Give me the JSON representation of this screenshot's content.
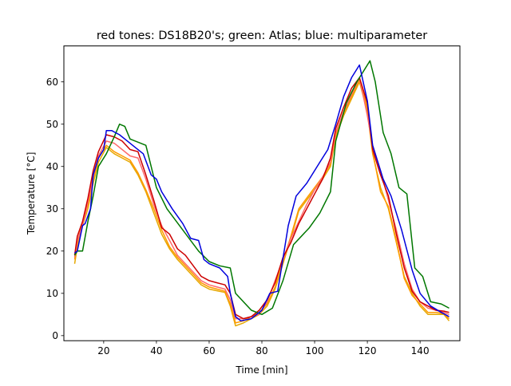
{
  "chart_data": {
    "type": "line",
    "title": "red tones: DS18B20's; green: Atlas; blue: multiparameter",
    "xlabel": "Time [min]",
    "ylabel": "Temperature [°C]",
    "xlim": [
      4.9,
      155.1
    ],
    "ylim": [
      -1.2,
      68.5
    ],
    "xticks": [
      20,
      40,
      60,
      80,
      100,
      120,
      140
    ],
    "yticks": [
      0,
      10,
      20,
      30,
      40,
      50,
      60
    ],
    "grid": false,
    "legend": "none",
    "series": [
      {
        "color": "#e6a800",
        "x": [
          9,
          10,
          12,
          14,
          16,
          18,
          21,
          24,
          27,
          30,
          33,
          36,
          39,
          42,
          45,
          48,
          51,
          54,
          57,
          60,
          63,
          66,
          68,
          70,
          73,
          76,
          79,
          82,
          85,
          88,
          91,
          94,
          97,
          100,
          103,
          106,
          108,
          111,
          114,
          117,
          120,
          122,
          125,
          128,
          131,
          134,
          137,
          140,
          143,
          146,
          149,
          151
        ],
        "y": [
          17,
          21,
          26,
          30,
          36,
          41,
          44.5,
          43,
          42,
          41,
          38,
          34,
          29,
          24,
          20.5,
          18,
          16,
          14,
          12,
          11,
          10.6,
          10.2,
          7,
          2.3,
          3,
          4,
          5,
          7,
          11,
          17,
          23,
          29.5,
          32,
          34.5,
          37,
          40,
          47,
          52,
          56,
          60,
          53,
          43,
          35,
          30,
          22,
          14,
          10,
          7,
          5,
          5,
          5,
          3.5
        ]
      },
      {
        "color": "#ff9a00",
        "x": [
          9,
          10,
          12,
          14,
          16,
          18,
          21,
          24,
          27,
          30,
          33,
          36,
          39,
          42,
          45,
          48,
          51,
          54,
          57,
          60,
          63,
          66,
          68,
          70,
          73,
          76,
          79,
          82,
          85,
          88,
          91,
          94,
          97,
          100,
          103,
          106,
          108,
          111,
          114,
          117,
          120,
          122,
          125,
          128,
          131,
          134,
          137,
          140,
          143,
          146,
          149,
          151
        ],
        "y": [
          18,
          22,
          27,
          31,
          37,
          42,
          45,
          43.5,
          42.5,
          41.5,
          38.5,
          34.5,
          30,
          25,
          21,
          18.5,
          16.5,
          14.5,
          12.5,
          11.5,
          11,
          10.5,
          7.5,
          3,
          3.5,
          4.5,
          5.5,
          7.5,
          11.5,
          17.5,
          23.5,
          30,
          32.5,
          35,
          37.5,
          40.5,
          47.5,
          52.5,
          56.5,
          60.5,
          54,
          43.5,
          34,
          30.5,
          22.5,
          13.5,
          9.5,
          7.5,
          5.5,
          5.5,
          5.2,
          4
        ]
      },
      {
        "color": "#ff6a6a",
        "x": [
          9,
          10,
          12,
          14,
          16,
          18,
          21,
          24,
          27,
          30,
          33,
          36,
          39,
          42,
          45,
          48,
          51,
          54,
          57,
          60,
          63,
          66,
          68,
          70,
          73,
          76,
          79,
          82,
          85,
          88,
          91,
          94,
          97,
          100,
          103,
          106,
          108,
          111,
          114,
          117,
          120,
          122,
          125,
          128,
          131,
          134,
          137,
          140,
          143,
          146,
          149,
          151
        ],
        "y": [
          18.5,
          22.5,
          26,
          31.5,
          37.5,
          42.5,
          46,
          45.5,
          44,
          42.5,
          42,
          37,
          31,
          26,
          22.5,
          19,
          17,
          15,
          13,
          12,
          11.5,
          11,
          8.5,
          4,
          4,
          4.5,
          5,
          8,
          13,
          18,
          23,
          27,
          31,
          34.5,
          37.5,
          41,
          48,
          53,
          57,
          61,
          52,
          45,
          39,
          32,
          25,
          17,
          11,
          8,
          6.5,
          6,
          5.5,
          5
        ]
      },
      {
        "color": "#cc0000",
        "x": [
          9,
          10,
          12,
          14,
          16,
          18,
          21,
          24,
          27,
          30,
          33,
          36,
          39,
          42,
          45,
          48,
          51,
          54,
          57,
          60,
          63,
          66,
          68,
          70,
          73,
          76,
          79,
          82,
          85,
          88,
          91,
          94,
          97,
          100,
          103,
          106,
          108,
          111,
          114,
          117,
          120,
          122,
          125,
          128,
          131,
          134,
          137,
          140,
          143,
          146,
          149,
          151
        ],
        "y": [
          19,
          23.5,
          27,
          32.5,
          39,
          43.5,
          47.5,
          47,
          46,
          44,
          43.5,
          38,
          32,
          25.5,
          24,
          20.5,
          19,
          16.5,
          14,
          13,
          12.5,
          12,
          10,
          5,
          4,
          4.5,
          6,
          8.5,
          12.5,
          18.5,
          22,
          26.5,
          30,
          33.5,
          37,
          42,
          49,
          54,
          58.5,
          61,
          55,
          44,
          38,
          33,
          24,
          16,
          10.5,
          8,
          7,
          6,
          5.8,
          5.5
        ]
      },
      {
        "color": "#007700",
        "x": [
          9,
          10,
          12,
          14,
          16,
          18,
          21,
          24,
          26,
          28,
          30,
          36,
          40,
          44,
          50,
          56,
          60,
          64,
          68,
          70,
          76,
          80,
          84,
          88,
          92,
          98,
          102,
          106,
          108,
          112,
          116,
          118,
          121,
          123,
          126,
          129,
          132,
          135,
          138,
          141,
          144,
          148,
          151
        ],
        "y": [
          19,
          20,
          20,
          27,
          33,
          40,
          43,
          47,
          50,
          49.5,
          46.5,
          45,
          35,
          30,
          25,
          20,
          17.5,
          16.5,
          16,
          10,
          6,
          5,
          6.5,
          13,
          21.5,
          25.5,
          29,
          34,
          46,
          55,
          60,
          62,
          65,
          60,
          48,
          43,
          35,
          33.5,
          16,
          14,
          8,
          7.5,
          6.5
        ]
      },
      {
        "color": "#0000dd",
        "x": [
          9,
          10,
          12,
          13,
          15,
          16,
          18,
          20,
          21,
          23,
          26,
          29,
          32,
          35,
          38,
          40,
          42,
          44,
          46,
          50,
          53,
          56,
          58,
          60,
          64,
          67,
          68,
          70,
          72,
          76,
          80,
          83,
          86,
          90,
          93,
          97,
          102,
          105,
          108,
          111,
          114,
          117,
          120,
          122,
          126,
          129,
          133,
          137,
          140,
          144,
          148,
          151
        ],
        "y": [
          19.5,
          20,
          26,
          26.5,
          30,
          38,
          42,
          44,
          48.5,
          48.5,
          47.5,
          46,
          44.5,
          43,
          38,
          37,
          34,
          32,
          30,
          26.5,
          23,
          22.5,
          18,
          17,
          16,
          14,
          10,
          4.5,
          3.5,
          4,
          6,
          10,
          10.5,
          26,
          33,
          36,
          41,
          44,
          50,
          56.5,
          61,
          64,
          55.5,
          45,
          37,
          33,
          25,
          15.5,
          10,
          7,
          5.5,
          4.5
        ]
      }
    ]
  }
}
